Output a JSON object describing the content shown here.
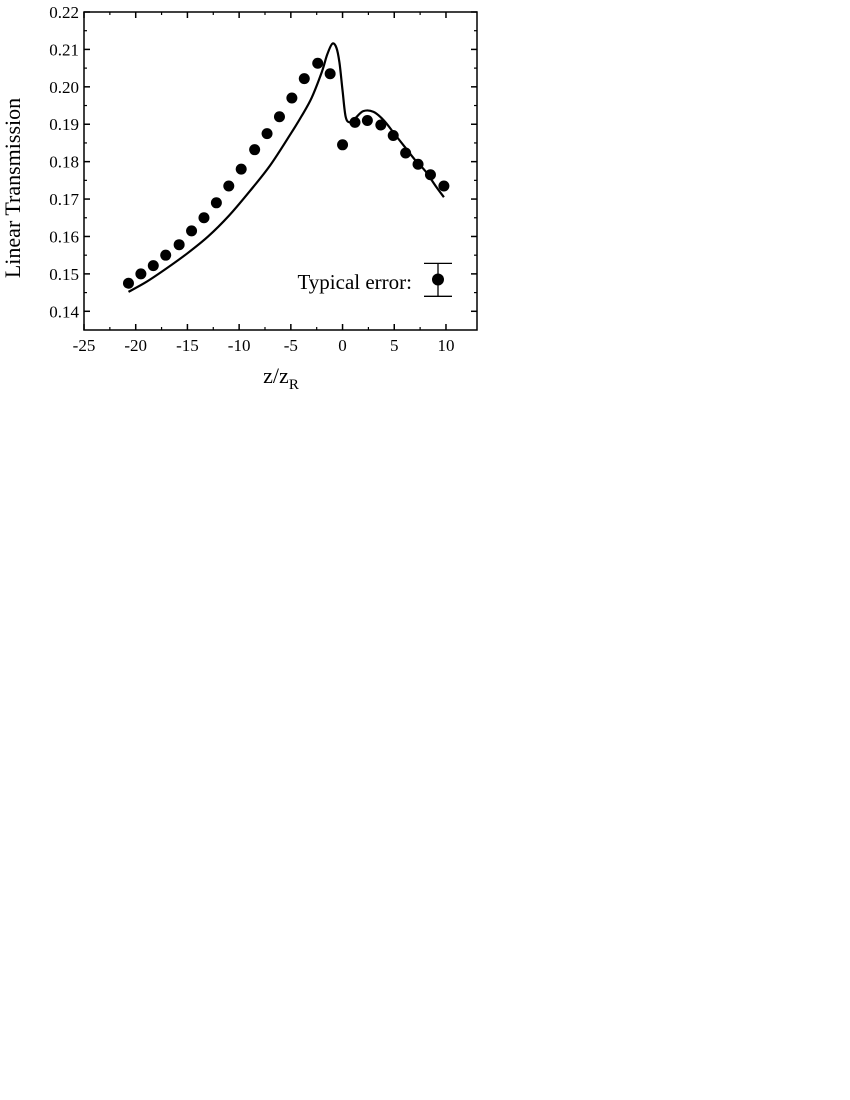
{
  "chart_data": {
    "type": "scatter",
    "xlabel": "z/z",
    "xlabel_subscript": "R",
    "ylabel": "Linear Transmission",
    "xlim": [
      -25,
      13
    ],
    "ylim": [
      0.135,
      0.22
    ],
    "x_ticks": [
      -25,
      -20,
      -15,
      -10,
      -5,
      0,
      5,
      10
    ],
    "x_tick_labels": [
      "-25",
      "-20",
      "-15",
      "-10",
      "-5",
      "0",
      "5",
      "10"
    ],
    "y_ticks": [
      0.14,
      0.15,
      0.16,
      0.17,
      0.18,
      0.19,
      0.2,
      0.21,
      0.22
    ],
    "y_tick_labels": [
      "0.14",
      "0.15",
      "0.16",
      "0.17",
      "0.18",
      "0.19",
      "0.20",
      "0.21",
      "0.22"
    ],
    "grid": false,
    "legend": {
      "label": "Typical error:",
      "placement": "bottom-right",
      "error_bar": {
        "y": 0.1485,
        "low": 0.144,
        "high": 0.1528
      }
    },
    "series": [
      {
        "kind": "points",
        "marker": "filled-circle",
        "color": "#000000",
        "x": [
          -20.7,
          -19.5,
          -18.3,
          -17.1,
          -15.8,
          -14.6,
          -13.4,
          -12.2,
          -11.0,
          -9.8,
          -8.5,
          -7.3,
          -6.1,
          -4.9,
          -3.7,
          -2.4,
          -1.2,
          0.0,
          1.2,
          2.4,
          3.7,
          4.9,
          6.1,
          7.3,
          8.5,
          9.8
        ],
        "y": [
          0.1475,
          0.15,
          0.1522,
          0.155,
          0.1578,
          0.1615,
          0.165,
          0.169,
          0.1735,
          0.178,
          0.1832,
          0.1875,
          0.192,
          0.197,
          0.2022,
          0.2063,
          0.2035,
          0.1845,
          0.1905,
          0.191,
          0.1898,
          0.187,
          0.1823,
          0.1793,
          0.1765,
          0.1735
        ]
      },
      {
        "kind": "line",
        "color": "#000000",
        "x": [
          -20.7,
          -19.0,
          -17.0,
          -15.0,
          -13.0,
          -11.0,
          -9.0,
          -7.0,
          -5.0,
          -4.0,
          -3.0,
          -2.0,
          -1.5,
          -1.0,
          -0.6,
          -0.3,
          0.0,
          0.3,
          0.7,
          1.2,
          2.0,
          3.0,
          4.0,
          5.0,
          6.0,
          7.0,
          8.0,
          9.0,
          9.8
        ],
        "y": [
          0.1452,
          0.1478,
          0.1515,
          0.1555,
          0.16,
          0.1655,
          0.172,
          0.179,
          0.1875,
          0.192,
          0.197,
          0.204,
          0.2085,
          0.2115,
          0.2105,
          0.2065,
          0.199,
          0.192,
          0.1905,
          0.1915,
          0.1935,
          0.1933,
          0.191,
          0.1875,
          0.184,
          0.1805,
          0.1775,
          0.1735,
          0.1705
        ]
      }
    ]
  }
}
